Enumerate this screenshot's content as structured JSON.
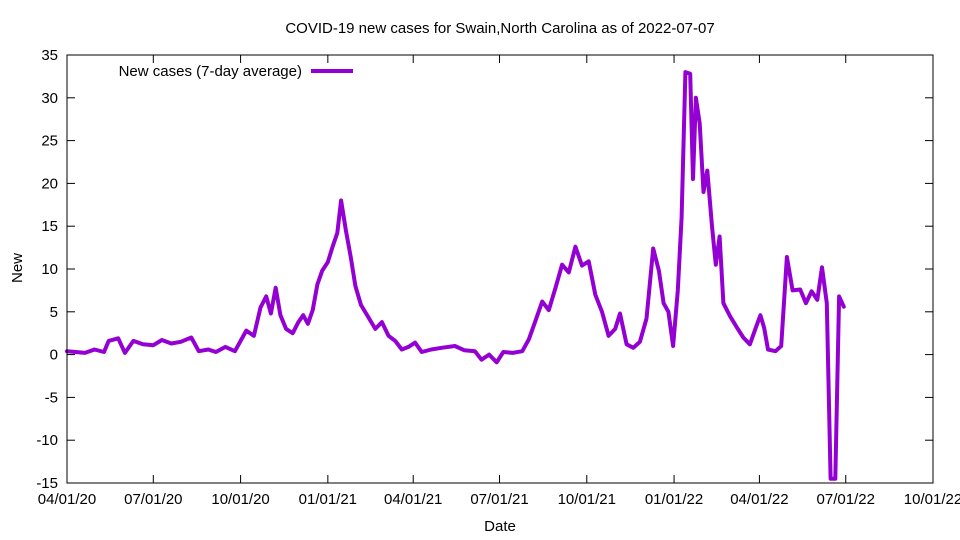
{
  "chart_data": {
    "type": "line",
    "title": "COVID-19 new cases for Swain,North Carolina as of 2022-07-07",
    "xlabel": "Date",
    "ylabel": "New",
    "xlim": [
      "2020-04-01",
      "2022-10-01"
    ],
    "ylim": [
      -15,
      35
    ],
    "x_ticks": [
      "04/01/20",
      "07/01/20",
      "10/01/20",
      "01/01/21",
      "04/01/21",
      "07/01/21",
      "10/01/21",
      "01/01/22",
      "04/01/22",
      "07/01/22",
      "10/01/22"
    ],
    "y_ticks": [
      -15,
      -10,
      -5,
      0,
      5,
      10,
      15,
      20,
      25,
      30,
      35
    ],
    "legend_position": "top-left",
    "grid": false,
    "series": [
      {
        "name": "New cases (7-day average)",
        "color": "#9400d3",
        "points": [
          [
            "2020-04-01",
            0.4
          ],
          [
            "2020-04-10",
            0.3
          ],
          [
            "2020-04-20",
            0.2
          ],
          [
            "2020-04-30",
            0.6
          ],
          [
            "2020-05-10",
            0.3
          ],
          [
            "2020-05-15",
            1.6
          ],
          [
            "2020-05-25",
            1.9
          ],
          [
            "2020-06-01",
            0.2
          ],
          [
            "2020-06-10",
            1.6
          ],
          [
            "2020-06-20",
            1.2
          ],
          [
            "2020-07-01",
            1.1
          ],
          [
            "2020-07-10",
            1.7
          ],
          [
            "2020-07-20",
            1.3
          ],
          [
            "2020-07-30",
            1.5
          ],
          [
            "2020-08-10",
            2.0
          ],
          [
            "2020-08-18",
            0.4
          ],
          [
            "2020-08-28",
            0.6
          ],
          [
            "2020-09-05",
            0.3
          ],
          [
            "2020-09-15",
            0.9
          ],
          [
            "2020-09-25",
            0.4
          ],
          [
            "2020-10-01",
            1.6
          ],
          [
            "2020-10-07",
            2.8
          ],
          [
            "2020-10-15",
            2.2
          ],
          [
            "2020-10-22",
            5.5
          ],
          [
            "2020-10-28",
            6.8
          ],
          [
            "2020-11-02",
            4.8
          ],
          [
            "2020-11-07",
            7.8
          ],
          [
            "2020-11-12",
            4.6
          ],
          [
            "2020-11-18",
            3.0
          ],
          [
            "2020-11-25",
            2.5
          ],
          [
            "2020-12-01",
            3.8
          ],
          [
            "2020-12-06",
            4.6
          ],
          [
            "2020-12-11",
            3.6
          ],
          [
            "2020-12-16",
            5.2
          ],
          [
            "2020-12-21",
            8.2
          ],
          [
            "2020-12-26",
            9.8
          ],
          [
            "2021-01-01",
            10.8
          ],
          [
            "2021-01-06",
            12.6
          ],
          [
            "2021-01-11",
            14.2
          ],
          [
            "2021-01-15",
            18.0
          ],
          [
            "2021-01-20",
            14.5
          ],
          [
            "2021-01-25",
            11.5
          ],
          [
            "2021-01-30",
            8.0
          ],
          [
            "2021-02-05",
            5.8
          ],
          [
            "2021-02-12",
            4.5
          ],
          [
            "2021-02-20",
            3.0
          ],
          [
            "2021-02-27",
            3.8
          ],
          [
            "2021-03-06",
            2.2
          ],
          [
            "2021-03-13",
            1.6
          ],
          [
            "2021-03-20",
            0.6
          ],
          [
            "2021-03-27",
            0.9
          ],
          [
            "2021-04-03",
            1.4
          ],
          [
            "2021-04-10",
            0.3
          ],
          [
            "2021-04-20",
            0.6
          ],
          [
            "2021-05-01",
            0.8
          ],
          [
            "2021-05-15",
            1.0
          ],
          [
            "2021-05-25",
            0.5
          ],
          [
            "2021-06-05",
            0.4
          ],
          [
            "2021-06-12",
            -0.6
          ],
          [
            "2021-06-20",
            0.0
          ],
          [
            "2021-06-28",
            -0.9
          ],
          [
            "2021-07-05",
            0.3
          ],
          [
            "2021-07-15",
            0.2
          ],
          [
            "2021-07-25",
            0.4
          ],
          [
            "2021-08-01",
            1.8
          ],
          [
            "2021-08-08",
            4.0
          ],
          [
            "2021-08-15",
            6.2
          ],
          [
            "2021-08-22",
            5.2
          ],
          [
            "2021-08-29",
            7.8
          ],
          [
            "2021-09-05",
            10.5
          ],
          [
            "2021-09-12",
            9.6
          ],
          [
            "2021-09-19",
            12.6
          ],
          [
            "2021-09-26",
            10.4
          ],
          [
            "2021-10-03",
            10.9
          ],
          [
            "2021-10-10",
            7.0
          ],
          [
            "2021-10-17",
            5.0
          ],
          [
            "2021-10-24",
            2.2
          ],
          [
            "2021-10-31",
            3.0
          ],
          [
            "2021-11-05",
            4.8
          ],
          [
            "2021-11-12",
            1.2
          ],
          [
            "2021-11-19",
            0.8
          ],
          [
            "2021-11-26",
            1.5
          ],
          [
            "2021-12-03",
            4.2
          ],
          [
            "2021-12-10",
            12.4
          ],
          [
            "2021-12-16",
            9.8
          ],
          [
            "2021-12-21",
            6.0
          ],
          [
            "2021-12-26",
            5.0
          ],
          [
            "2021-12-31",
            1.0
          ],
          [
            "2022-01-05",
            7.5
          ],
          [
            "2022-01-09",
            16.0
          ],
          [
            "2022-01-13",
            33.0
          ],
          [
            "2022-01-18",
            32.8
          ],
          [
            "2022-01-21",
            20.5
          ],
          [
            "2022-01-24",
            30.0
          ],
          [
            "2022-01-28",
            27.0
          ],
          [
            "2022-02-01",
            19.0
          ],
          [
            "2022-02-05",
            21.5
          ],
          [
            "2022-02-10",
            15.0
          ],
          [
            "2022-02-14",
            10.5
          ],
          [
            "2022-02-18",
            13.8
          ],
          [
            "2022-02-22",
            6.0
          ],
          [
            "2022-03-01",
            4.5
          ],
          [
            "2022-03-08",
            3.2
          ],
          [
            "2022-03-15",
            2.0
          ],
          [
            "2022-03-22",
            1.2
          ],
          [
            "2022-03-29",
            3.4
          ],
          [
            "2022-04-02",
            4.6
          ],
          [
            "2022-04-06",
            3.1
          ],
          [
            "2022-04-10",
            0.6
          ],
          [
            "2022-04-18",
            0.4
          ],
          [
            "2022-04-24",
            1.0
          ],
          [
            "2022-04-30",
            11.4
          ],
          [
            "2022-05-06",
            7.5
          ],
          [
            "2022-05-14",
            7.6
          ],
          [
            "2022-05-20",
            6.0
          ],
          [
            "2022-05-26",
            7.4
          ],
          [
            "2022-06-01",
            6.4
          ],
          [
            "2022-06-06",
            10.2
          ],
          [
            "2022-06-11",
            6.0
          ],
          [
            "2022-06-15",
            -14.5
          ],
          [
            "2022-06-20",
            -14.5
          ],
          [
            "2022-06-24",
            6.8
          ],
          [
            "2022-06-29",
            5.6
          ]
        ]
      }
    ]
  }
}
